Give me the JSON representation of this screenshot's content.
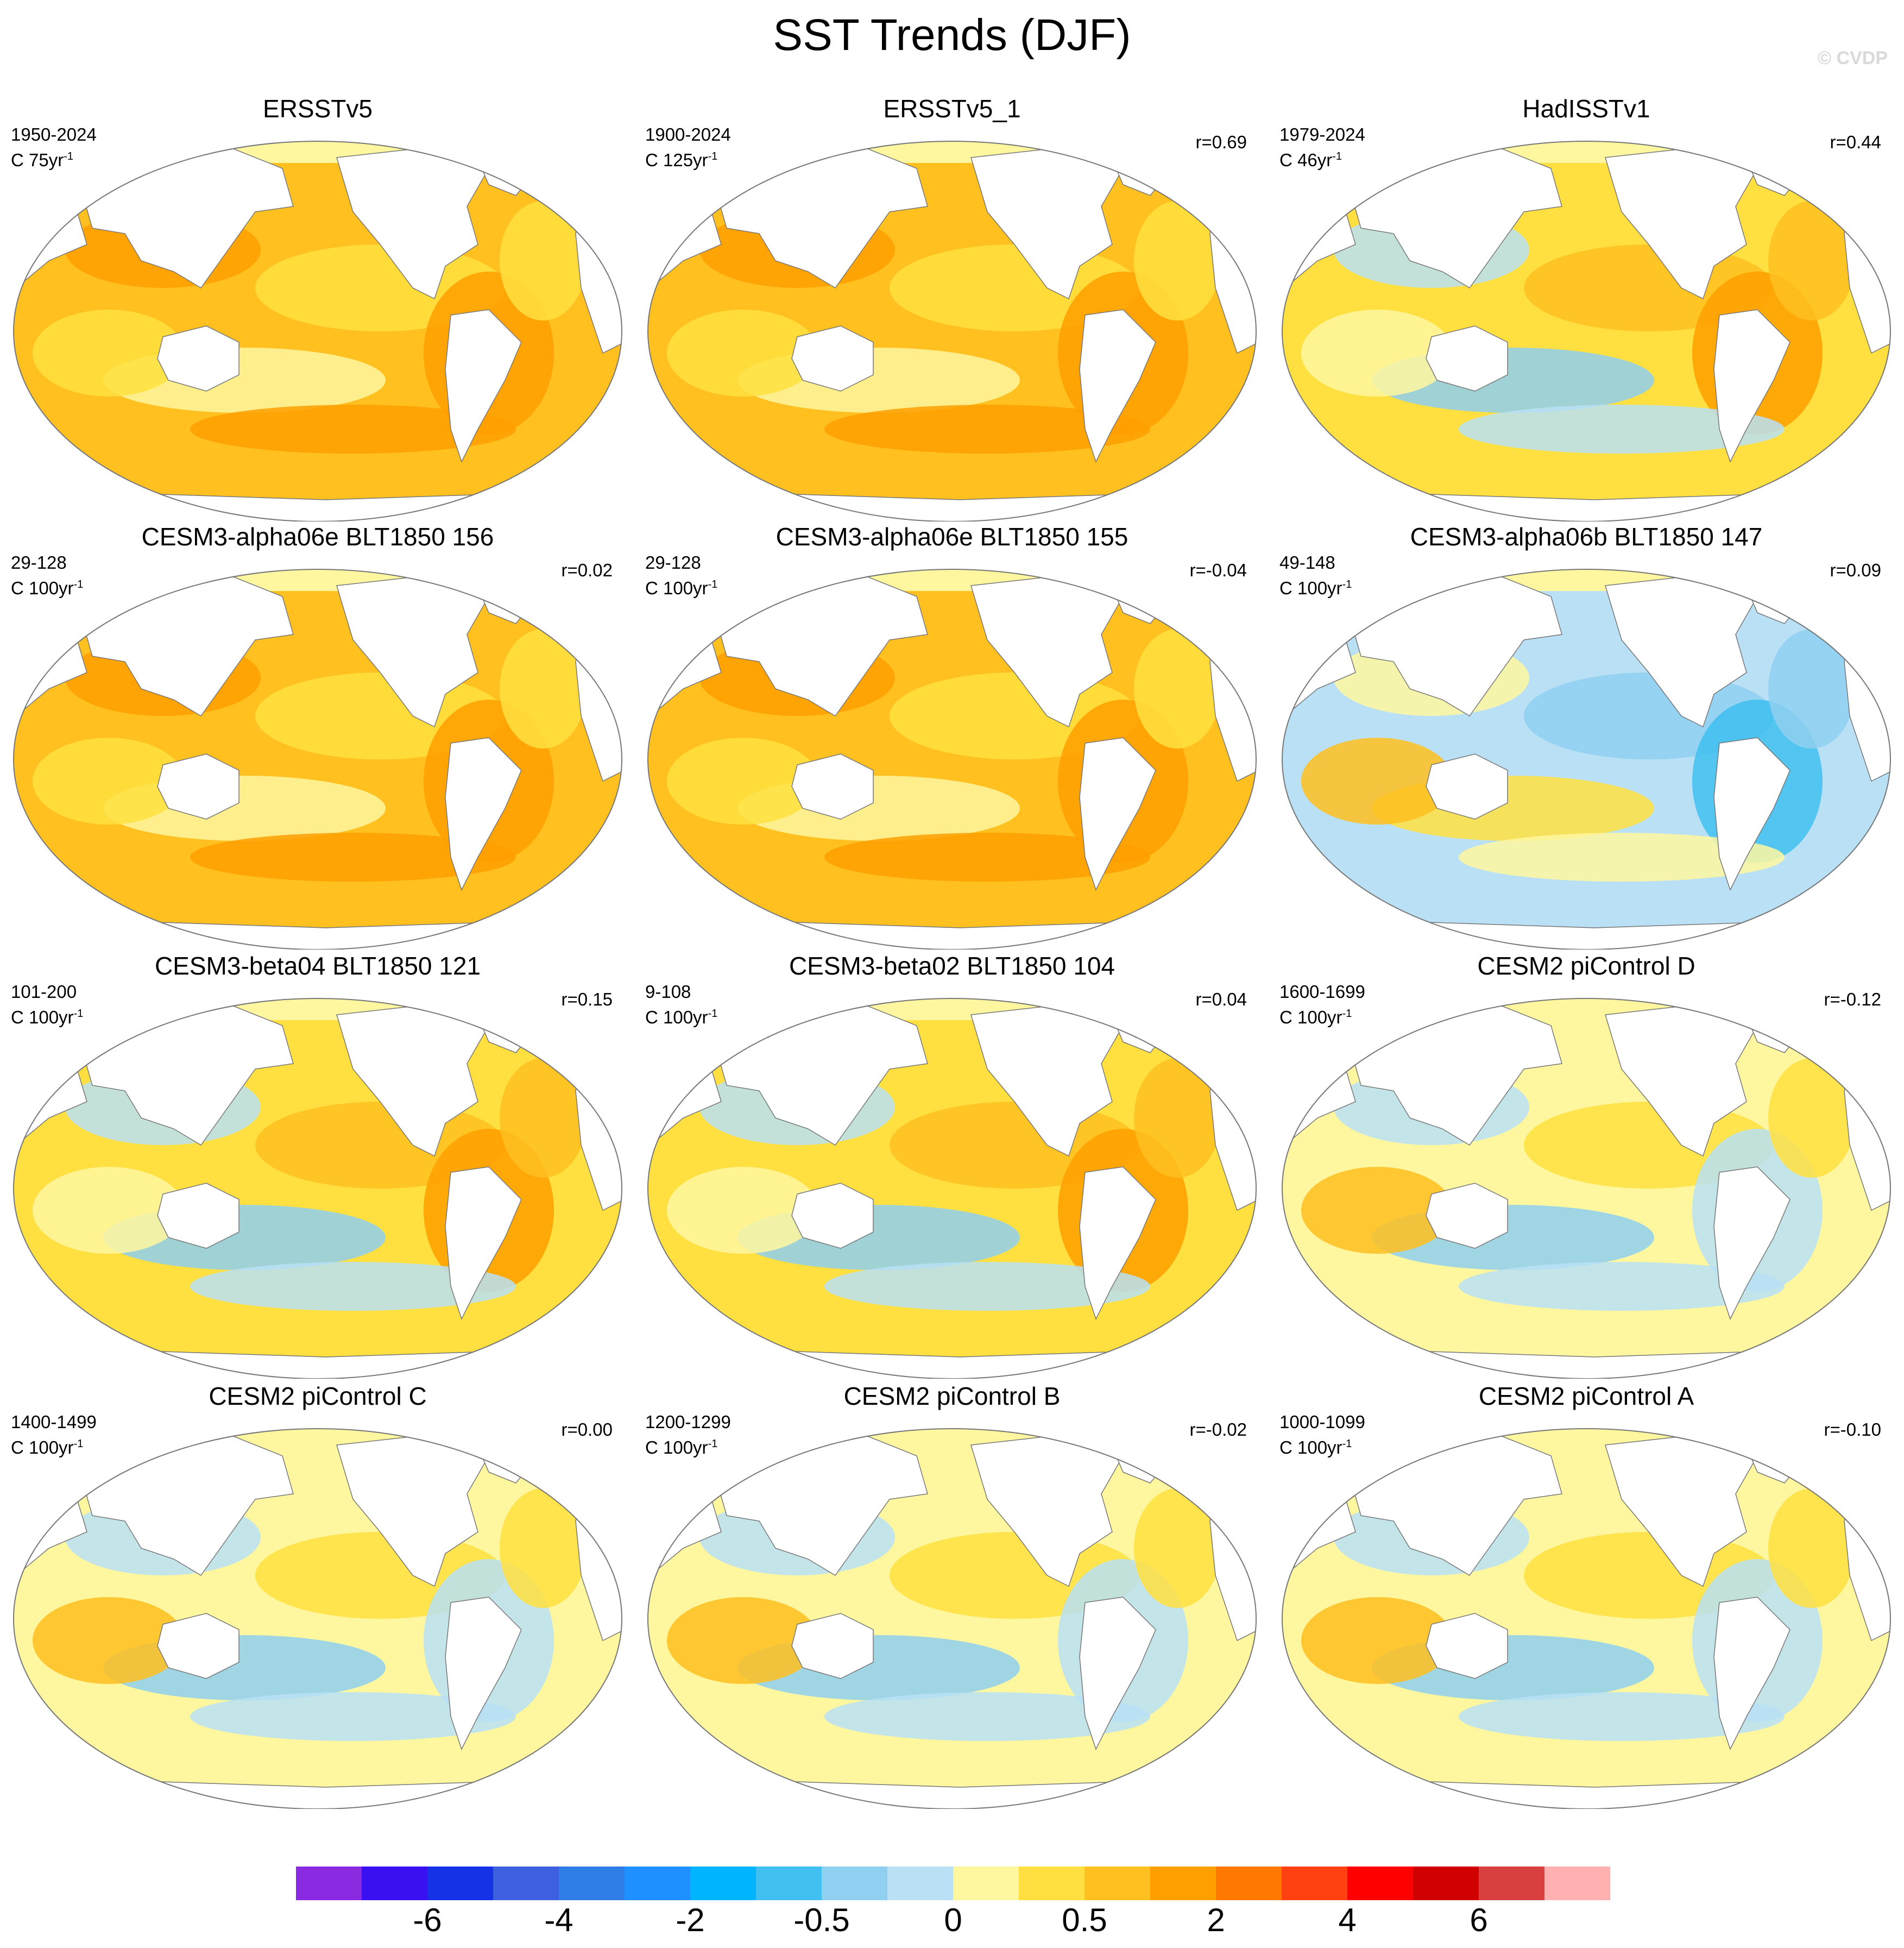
{
  "title": "SST Trends (DJF)",
  "watermark": "© CVDP",
  "panels": [
    {
      "title": "ERSSTv5",
      "period": "1950-2024",
      "units": "C 75yr",
      "units_exp": "-1",
      "corr": "",
      "palette": "warm"
    },
    {
      "title": "ERSSTv5_1",
      "period": "1900-2024",
      "units": "C 125yr",
      "units_exp": "-1",
      "corr": "r=0.69",
      "palette": "warm"
    },
    {
      "title": "HadISSTv1",
      "period": "1979-2024",
      "units": "C 46yr",
      "units_exp": "-1",
      "corr": "r=0.44",
      "palette": "mixed-warm"
    },
    {
      "title": "CESM3-alpha06e BLT1850 156",
      "period": "29-128",
      "units": "C 100yr",
      "units_exp": "-1",
      "corr": "r=0.02",
      "palette": "warm"
    },
    {
      "title": "CESM3-alpha06e BLT1850 155",
      "period": "29-128",
      "units": "C 100yr",
      "units_exp": "-1",
      "corr": "r=-0.04",
      "palette": "warm"
    },
    {
      "title": "CESM3-alpha06b BLT1850 147",
      "period": "49-148",
      "units": "C 100yr",
      "units_exp": "-1",
      "corr": "r=0.09",
      "palette": "cool"
    },
    {
      "title": "CESM3-beta04 BLT1850 121",
      "period": "101-200",
      "units": "C 100yr",
      "units_exp": "-1",
      "corr": "r=0.15",
      "palette": "mixed-warm"
    },
    {
      "title": "CESM3-beta02 BLT1850 104",
      "period": "9-108",
      "units": "C 100yr",
      "units_exp": "-1",
      "corr": "r=0.04",
      "palette": "mixed-warm"
    },
    {
      "title": "CESM2 piControl D",
      "period": "1600-1699",
      "units": "C 100yr",
      "units_exp": "-1",
      "corr": "r=-0.12",
      "palette": "mixed-cool"
    },
    {
      "title": "CESM2 piControl C",
      "period": "1400-1499",
      "units": "C 100yr",
      "units_exp": "-1",
      "corr": "r=0.00",
      "palette": "mixed-cool"
    },
    {
      "title": "CESM2 piControl B",
      "period": "1200-1299",
      "units": "C 100yr",
      "units_exp": "-1",
      "corr": "r=-0.02",
      "palette": "mixed-cool"
    },
    {
      "title": "CESM2 piControl A",
      "period": "1000-1099",
      "units": "C 100yr",
      "units_exp": "-1",
      "corr": "r=-0.10",
      "palette": "mixed-cool"
    }
  ],
  "colorbar": {
    "colors": [
      "#8a2be2",
      "#3a0ff0",
      "#1532e6",
      "#3d5fe0",
      "#2f7de6",
      "#1e90ff",
      "#00b4ff",
      "#40c0f0",
      "#8fcff0",
      "#b9e0f5",
      "#fff7a0",
      "#ffe040",
      "#ffc020",
      "#ff9f00",
      "#ff7800",
      "#ff4010",
      "#ff0000",
      "#d00000",
      "#d84040",
      "#ffb0b0"
    ],
    "labels": [
      "-6",
      "-4",
      "-2",
      "-0.5",
      "0",
      "0.5",
      "2",
      "4",
      "6"
    ],
    "label_boundaries": [
      2,
      4,
      6,
      8,
      10,
      12,
      14,
      16,
      18
    ]
  },
  "palettes": {
    "warm": {
      "base": "#ffc020",
      "blobs": [
        "#ff9f00",
        "#ffe040",
        "#fff7a0",
        "#ff9f00",
        "#ffe040"
      ]
    },
    "mixed-warm": {
      "base": "#ffe040",
      "blobs": [
        "#b9e0f5",
        "#ffc020",
        "#8fcff0",
        "#ff9f00",
        "#fff7a0"
      ]
    },
    "mixed-cool": {
      "base": "#fff7a0",
      "blobs": [
        "#b9e0f5",
        "#ffe040",
        "#8fcff0",
        "#b9e0f5",
        "#ffc020"
      ]
    },
    "cool": {
      "base": "#b9e0f5",
      "blobs": [
        "#fff7a0",
        "#8fcff0",
        "#ffe040",
        "#40c0f0",
        "#ffc020"
      ]
    }
  }
}
